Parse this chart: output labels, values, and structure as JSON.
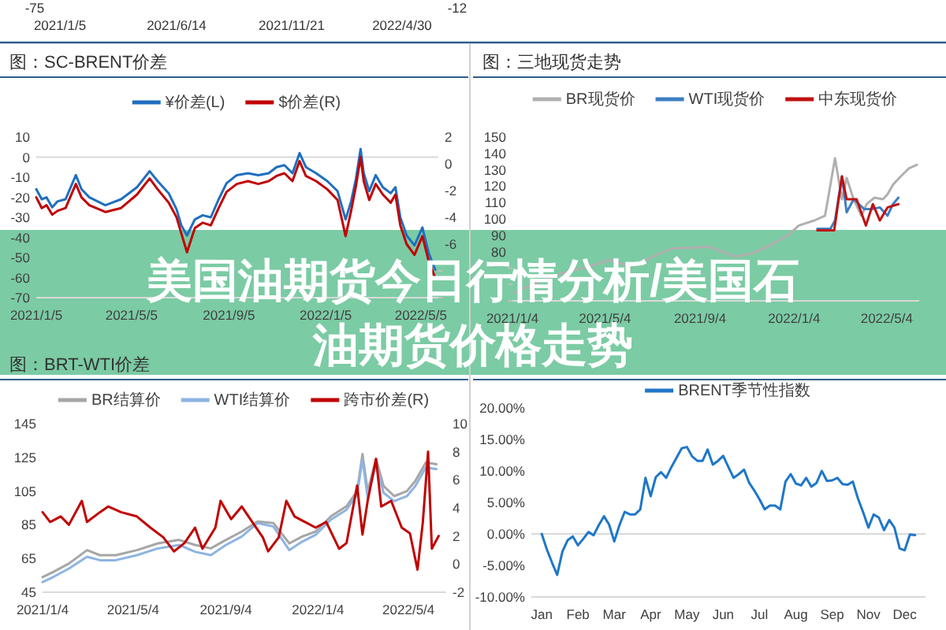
{
  "chart_data": [
    {
      "type": "other",
      "title": "美国油期货今日行情分析/美国石油期货价格走势",
      "annotations": [
        "-75",
        "2021/1/5",
        "2021/6/14",
        "2021/11/21",
        "2022/4/30",
        "-12"
      ]
    },
    {
      "type": "line",
      "title": "图：SC-BRENT价差",
      "legend": "top",
      "xlim": [
        "2021-01-05",
        "2022-05-27"
      ],
      "xticks": [
        {
          "value": "2021-01-05",
          "label": "2021/1/5"
        },
        {
          "value": "2021-05-05",
          "label": "2021/5/5"
        },
        {
          "value": "2021-09-05",
          "label": "2021/9/5"
        },
        {
          "value": "2022-01-05",
          "label": "2022/1/5"
        },
        {
          "value": "2022-05-05",
          "label": "2022/5/5"
        }
      ],
      "ylim": [
        -70,
        10
      ],
      "yticks": [
        -70,
        -60,
        -50,
        -40,
        -30,
        -20,
        -10,
        0,
        10
      ],
      "y2lim": [
        -10,
        2
      ],
      "y2ticks": [
        {
          "value": -10,
          "label": null
        },
        {
          "value": -8,
          "label": null
        },
        -6,
        -4,
        -2,
        0,
        2
      ],
      "x": [
        "2021-01-05",
        "2021-01-12",
        "2021-01-18",
        "2021-01-25",
        "2021-02-01",
        "2021-02-11",
        "2021-02-24",
        "2021-03-03",
        "2021-03-13",
        "2021-04-02",
        "2021-04-22",
        "2021-05-12",
        "2021-05-28",
        "2021-06-07",
        "2021-06-21",
        "2021-07-01",
        "2021-07-07",
        "2021-07-14",
        "2021-07-24",
        "2021-08-03",
        "2021-08-13",
        "2021-08-23",
        "2021-09-02",
        "2021-09-15",
        "2021-09-29",
        "2021-10-12",
        "2021-10-25",
        "2021-11-04",
        "2021-11-14",
        "2021-11-24",
        "2021-12-03",
        "2021-12-11",
        "2021-12-24",
        "2022-01-07",
        "2022-01-20",
        "2022-01-30",
        "2022-02-06",
        "2022-02-12",
        "2022-02-18",
        "2022-02-22",
        "2022-03-01",
        "2022-03-09",
        "2022-03-18",
        "2022-03-28",
        "2022-04-03",
        "2022-04-09",
        "2022-04-17",
        "2022-04-27",
        "2022-05-07",
        "2022-05-15",
        "2022-05-23"
      ],
      "series": [
        {
          "name": "¥价差(L)",
          "color": "#1f6fc0",
          "values": [
            -16,
            -21,
            -20,
            -25,
            -22,
            -21,
            -9,
            -16,
            -20,
            -24,
            -21,
            -15,
            -7,
            -12,
            -18,
            -26,
            -34,
            -39,
            -31,
            -29,
            -30,
            -21,
            -13,
            -9,
            -8,
            -9,
            -8,
            -5,
            -4,
            -8,
            2,
            -5,
            -8,
            -12,
            -17,
            -31,
            -22,
            -11,
            4,
            -8,
            -17,
            -9,
            -15,
            -18,
            -15,
            -30,
            -39,
            -44,
            -35,
            -48,
            -56
          ]
        },
        {
          "name": "$价差(R)",
          "color": "#c00000",
          "axis": "y2",
          "values": [
            -2.5,
            -3.3,
            -3.1,
            -3.8,
            -3.5,
            -3.3,
            -1.5,
            -2.5,
            -3.1,
            -3.6,
            -3.3,
            -2.3,
            -1.1,
            -1.9,
            -2.9,
            -4.0,
            -5.2,
            -6.6,
            -4.8,
            -4.4,
            -4.6,
            -3.3,
            -2.1,
            -1.5,
            -1.3,
            -1.5,
            -1.3,
            -0.9,
            -0.7,
            -1.3,
            0.2,
            -0.9,
            -1.3,
            -1.9,
            -2.7,
            -5.4,
            -3.5,
            -1.7,
            0.5,
            -1.3,
            -2.7,
            -1.5,
            -2.3,
            -2.9,
            -2.3,
            -4.6,
            -6.0,
            -6.8,
            -5.4,
            -7.3,
            -8.5
          ]
        }
      ]
    },
    {
      "type": "line",
      "title": "图：三地现货走势",
      "legend": "top",
      "xlim": [
        "2021-01-04",
        "2022-06-15"
      ],
      "xticks": [
        {
          "value": "2021-01-04",
          "label": "2021/1/4"
        },
        {
          "value": "2021-05-04",
          "label": "2021/5/4"
        },
        {
          "value": "2021-09-04",
          "label": "2021/9/4"
        },
        {
          "value": "2022-01-04",
          "label": "2022/1/4"
        },
        {
          "value": "2022-05-04",
          "label": "2022/5/4"
        }
      ],
      "ylim": [
        50,
        150
      ],
      "yticks": [
        {
          "value": 50,
          "label": null
        },
        {
          "value": 60,
          "label": null
        },
        {
          "value": 70,
          "label": null
        },
        80,
        90,
        100,
        110,
        120,
        130,
        140,
        150
      ],
      "series": [
        {
          "name": "BR现货价",
          "color": "#b0b0b0",
          "x": [
            "2021-01-07",
            "2021-02-04",
            "2021-03-10",
            "2021-04-13",
            "2021-05-10",
            "2021-06-06",
            "2021-07-30",
            "2021-09-16",
            "2021-10-20",
            "2021-11-10",
            "2021-11-30",
            "2021-12-27",
            "2022-01-10",
            "2022-01-30",
            "2022-02-13",
            "2022-02-26",
            "2022-03-07",
            "2022-03-13",
            "2022-03-22",
            "2022-04-01",
            "2022-04-08",
            "2022-04-18",
            "2022-04-29",
            "2022-05-05",
            "2022-05-12",
            "2022-05-22",
            "2022-06-02",
            "2022-06-12"
          ],
          "values": [
            55,
            61,
            67,
            71,
            75,
            71,
            82,
            83,
            77,
            79,
            83,
            90,
            96,
            99,
            102,
            137,
            112,
            125,
            112,
            102,
            109,
            113,
            112,
            115,
            121,
            126,
            131,
            133
          ]
        },
        {
          "name": "WTI现货价",
          "color": "#3c7fc0",
          "x": [
            "2022-02-03",
            "2022-02-20",
            "2022-02-26",
            "2022-03-07",
            "2022-03-13",
            "2022-03-22",
            "2022-04-05",
            "2022-04-15",
            "2022-04-25",
            "2022-05-05",
            "2022-05-12",
            "2022-05-19"
          ],
          "values": [
            94,
            94,
            99,
            126,
            104,
            112,
            106,
            106,
            107,
            102,
            109,
            113
          ]
        },
        {
          "name": "中东现货价",
          "color": "#c01010",
          "x": [
            "2022-02-03",
            "2022-02-25",
            "2022-03-07",
            "2022-03-13",
            "2022-03-26",
            "2022-04-07",
            "2022-04-16",
            "2022-04-25",
            "2022-05-05",
            "2022-05-19"
          ],
          "values": [
            93,
            93,
            126,
            112,
            112,
            96,
            109,
            99,
            107,
            109
          ]
        }
      ]
    },
    {
      "type": "line",
      "title": "图：BRT-WTI价差",
      "legend": "top",
      "xlim": [
        "2021-01-04",
        "2022-06-23"
      ],
      "xticks": [
        {
          "value": "2021-01-04",
          "label": "2021/1/4"
        },
        {
          "value": "2021-05-04",
          "label": "2021/5/4"
        },
        {
          "value": "2021-09-04",
          "label": "2021/9/4"
        },
        {
          "value": "2022-01-04",
          "label": "2022/1/4"
        },
        {
          "value": "2022-05-04",
          "label": "2022/5/4"
        }
      ],
      "ylim": [
        45,
        145
      ],
      "yticks": [
        45,
        65,
        85,
        105,
        125,
        145
      ],
      "y2lim": [
        -2,
        10
      ],
      "y2ticks": [
        -2,
        0,
        2,
        4,
        6,
        8,
        10
      ],
      "x": [
        "2021-01-04",
        "2021-01-18",
        "2021-02-08",
        "2021-03-04",
        "2021-03-21",
        "2021-04-11",
        "2021-05-09",
        "2021-06-06",
        "2021-07-04",
        "2021-07-25",
        "2021-08-15",
        "2021-09-04",
        "2021-09-25",
        "2021-10-16",
        "2021-11-06",
        "2021-11-27",
        "2021-12-14",
        "2022-01-01",
        "2022-01-21",
        "2022-02-11",
        "2022-02-25",
        "2022-03-04",
        "2022-03-11",
        "2022-03-22",
        "2022-04-01",
        "2022-04-15",
        "2022-05-02",
        "2022-05-13",
        "2022-05-27",
        "2022-06-10"
      ],
      "series": [
        {
          "name": "BR结算价",
          "color": "#a6a6a6",
          "values": [
            54,
            57,
            62,
            70,
            67,
            67,
            70,
            74,
            76,
            73,
            71,
            76,
            81,
            87,
            86,
            74,
            78,
            81,
            90,
            96,
            105,
            127,
            105,
            124,
            108,
            102,
            105,
            111,
            122,
            121
          ]
        },
        {
          "name": "WTI结算价",
          "color": "#8db4e2",
          "values": [
            51,
            54,
            59,
            66,
            64,
            64,
            67,
            71,
            73,
            69,
            67,
            73,
            78,
            86,
            84,
            70,
            75,
            79,
            88,
            94,
            103,
            124,
            101,
            121,
            104,
            99,
            102,
            108,
            119,
            118
          ]
        },
        {
          "name": "跨市价差(R)",
          "color": "#c00000",
          "axis": "y2",
          "x": [
            "2021-01-04",
            "2021-01-14",
            "2021-01-28",
            "2021-02-08",
            "2021-02-25",
            "2021-03-04",
            "2021-03-21",
            "2021-04-01",
            "2021-04-18",
            "2021-05-09",
            "2021-05-27",
            "2021-06-13",
            "2021-06-27",
            "2021-07-11",
            "2021-07-25",
            "2021-08-04",
            "2021-08-21",
            "2021-08-28",
            "2021-09-11",
            "2021-09-25",
            "2021-10-09",
            "2021-10-23",
            "2021-10-30",
            "2021-11-13",
            "2021-11-23",
            "2021-12-04",
            "2021-12-18",
            "2022-01-01",
            "2022-01-15",
            "2022-02-01",
            "2022-02-11",
            "2022-02-25",
            "2022-03-04",
            "2022-03-11",
            "2022-03-22",
            "2022-03-29",
            "2022-04-11",
            "2022-04-25",
            "2022-05-06",
            "2022-05-16",
            "2022-05-23",
            "2022-05-30",
            "2022-06-04",
            "2022-06-13"
          ],
          "values": [
            3.7,
            3.0,
            3.4,
            2.8,
            4.5,
            3.0,
            3.7,
            4.1,
            3.7,
            3.4,
            2.6,
            1.9,
            0.9,
            1.5,
            2.6,
            1.1,
            2.6,
            4.5,
            3.2,
            4.1,
            3.0,
            1.9,
            0.9,
            1.9,
            4.5,
            3.4,
            3.0,
            2.6,
            3.0,
            1.1,
            1.5,
            5.6,
            2.1,
            4.5,
            7.5,
            4.1,
            4.5,
            2.6,
            2.2,
            -0.4,
            3.0,
            8.0,
            1.1,
            2.0
          ]
        }
      ]
    },
    {
      "type": "line",
      "legend": "top",
      "categories": [
        "Jan",
        null,
        null,
        null,
        null,
        null,
        null,
        "Feb",
        null,
        null,
        null,
        null,
        null,
        null,
        "Mar",
        null,
        null,
        null,
        null,
        null,
        null,
        "Apr",
        null,
        null,
        null,
        null,
        null,
        null,
        "May",
        null,
        null,
        null,
        null,
        null,
        null,
        "Jun",
        null,
        null,
        null,
        null,
        null,
        null,
        "Jul",
        null,
        null,
        null,
        null,
        null,
        null,
        "Aug",
        null,
        null,
        null,
        null,
        null,
        null,
        "Sep",
        null,
        null,
        null,
        null,
        null,
        null,
        "Nov",
        null,
        null,
        null,
        null,
        null,
        null,
        "Dec",
        null,
        null
      ],
      "ylim": [
        -10,
        20
      ],
      "yticks": [
        {
          "value": -10,
          "label": "-10.00%"
        },
        {
          "value": -5,
          "label": "-5.00%"
        },
        {
          "value": 0,
          "label": "0.00%"
        },
        {
          "value": 5,
          "label": "5.00%"
        },
        {
          "value": 10,
          "label": "10.00%"
        },
        {
          "value": 15,
          "label": "15.00%"
        },
        {
          "value": 20,
          "label": "20.00%"
        }
      ],
      "series": [
        {
          "name": "BRENT季节性指数",
          "color": "#1f77c8",
          "values": [
            0,
            -2.5,
            -4.6,
            -6.5,
            -2.8,
            -1.0,
            -0.4,
            -1.8,
            -0.8,
            0.3,
            -0.2,
            1.4,
            2.8,
            1.5,
            -1.2,
            1.4,
            3.5,
            3.1,
            3.1,
            3.9,
            8.9,
            6.0,
            9.0,
            9.8,
            8.9,
            10.6,
            12.1,
            13.6,
            13.8,
            12.3,
            11.6,
            11.6,
            13.4,
            11.0,
            11.6,
            12.4,
            10.6,
            8.9,
            9.5,
            10.2,
            8.1,
            6.9,
            5.5,
            3.9,
            4.5,
            4.5,
            3.9,
            8.3,
            9.5,
            8.0,
            7.7,
            8.9,
            7.5,
            8.1,
            10.0,
            8.4,
            8.5,
            8.9,
            7.9,
            7.8,
            8.3,
            5.6,
            3.4,
            1.0,
            3.1,
            2.6,
            0.6,
            2.2,
            1.0,
            -2.3,
            -2.6,
            -0.1,
            -0.2
          ]
        }
      ]
    }
  ]
}
